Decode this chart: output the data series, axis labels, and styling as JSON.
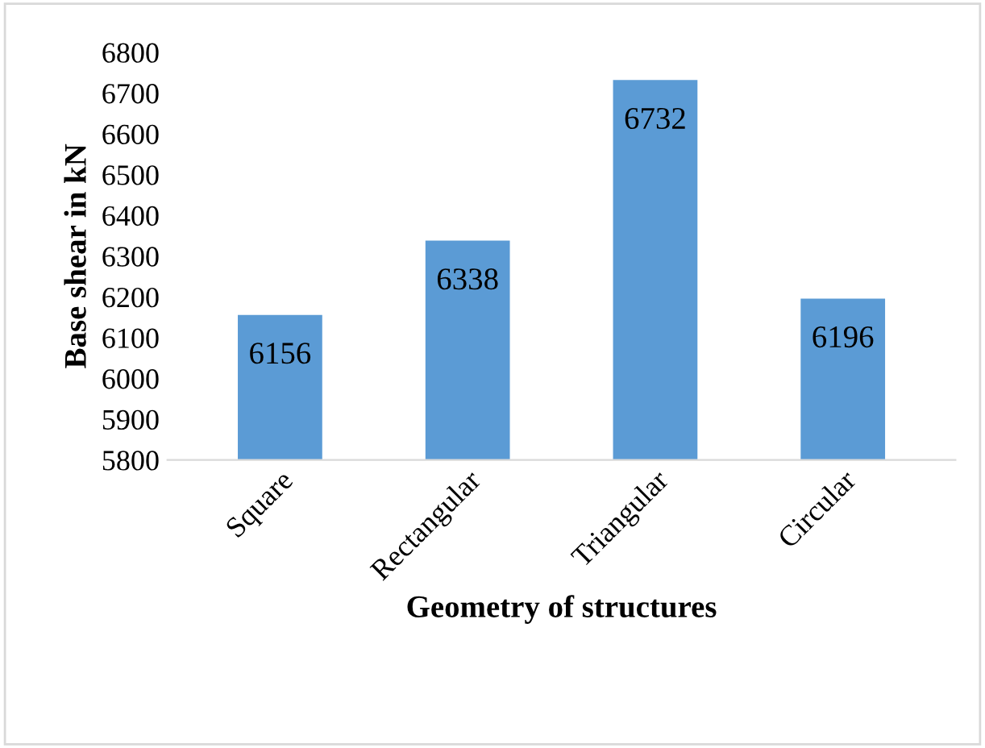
{
  "chart_data": {
    "type": "bar",
    "xlabel": "Geometry of structures",
    "ylabel": "Base shear in kN",
    "categories": [
      "Square",
      "Rectangular",
      "Triangular",
      "Circular"
    ],
    "values": [
      6156,
      6338,
      6732,
      6196
    ],
    "color": "#5b9bd5",
    "ylim": [
      5800,
      6800
    ],
    "yticks": [
      5800,
      5900,
      6000,
      6100,
      6200,
      6300,
      6400,
      6500,
      6600,
      6700,
      6800
    ],
    "grid": false,
    "legend": false,
    "data_labels": true
  }
}
